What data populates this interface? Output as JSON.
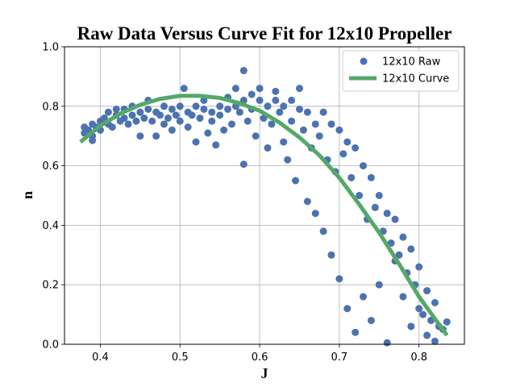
{
  "chart_data": {
    "type": "scatter",
    "title": "Raw Data Versus Curve Fit for 12x10 Propeller",
    "xlabel": "J",
    "ylabel": "n",
    "xlim": [
      0.355,
      0.857
    ],
    "ylim": [
      0,
      1.0
    ],
    "xticks": [
      0.4,
      0.5,
      0.6,
      0.7,
      0.8
    ],
    "yticks": [
      0.0,
      0.2,
      0.4,
      0.6,
      0.8,
      1.0
    ],
    "xtick_labels": [
      "0.4",
      "0.5",
      "0.6",
      "0.7",
      "0.8"
    ],
    "ytick_labels": [
      "0.0",
      "0.2",
      "0.4",
      "0.6",
      "0.8",
      "1.0"
    ],
    "grid": true,
    "legend_position": "top-right",
    "colors": {
      "raw": "#4c72b0",
      "curve": "#55a868"
    },
    "series": [
      {
        "name": "12x10 Raw",
        "kind": "scatter",
        "points": [
          [
            0.38,
            0.71
          ],
          [
            0.38,
            0.73
          ],
          [
            0.385,
            0.72
          ],
          [
            0.39,
            0.74
          ],
          [
            0.39,
            0.7
          ],
          [
            0.39,
            0.685
          ],
          [
            0.395,
            0.73
          ],
          [
            0.4,
            0.75
          ],
          [
            0.4,
            0.72
          ],
          [
            0.405,
            0.76
          ],
          [
            0.41,
            0.74
          ],
          [
            0.41,
            0.78
          ],
          [
            0.415,
            0.73
          ],
          [
            0.42,
            0.77
          ],
          [
            0.42,
            0.79
          ],
          [
            0.425,
            0.75
          ],
          [
            0.43,
            0.76
          ],
          [
            0.43,
            0.79
          ],
          [
            0.435,
            0.74
          ],
          [
            0.44,
            0.77
          ],
          [
            0.44,
            0.8
          ],
          [
            0.445,
            0.75
          ],
          [
            0.45,
            0.78
          ],
          [
            0.45,
            0.7
          ],
          [
            0.455,
            0.76
          ],
          [
            0.46,
            0.79
          ],
          [
            0.46,
            0.82
          ],
          [
            0.465,
            0.75
          ],
          [
            0.47,
            0.78
          ],
          [
            0.47,
            0.7
          ],
          [
            0.475,
            0.77
          ],
          [
            0.48,
            0.8
          ],
          [
            0.48,
            0.74
          ],
          [
            0.485,
            0.76
          ],
          [
            0.49,
            0.79
          ],
          [
            0.49,
            0.72
          ],
          [
            0.495,
            0.77
          ],
          [
            0.5,
            0.8
          ],
          [
            0.5,
            0.75
          ],
          [
            0.505,
            0.86
          ],
          [
            0.51,
            0.78
          ],
          [
            0.51,
            0.73
          ],
          [
            0.515,
            0.77
          ],
          [
            0.52,
            0.8
          ],
          [
            0.52,
            0.68
          ],
          [
            0.525,
            0.76
          ],
          [
            0.53,
            0.79
          ],
          [
            0.53,
            0.82
          ],
          [
            0.535,
            0.71
          ],
          [
            0.54,
            0.78
          ],
          [
            0.54,
            0.75
          ],
          [
            0.545,
            0.67
          ],
          [
            0.55,
            0.8
          ],
          [
            0.55,
            0.77
          ],
          [
            0.555,
            0.72
          ],
          [
            0.56,
            0.79
          ],
          [
            0.56,
            0.83
          ],
          [
            0.565,
            0.74
          ],
          [
            0.57,
            0.8
          ],
          [
            0.57,
            0.86
          ],
          [
            0.575,
            0.78
          ],
          [
            0.58,
            0.82
          ],
          [
            0.58,
            0.92
          ],
          [
            0.585,
            0.75
          ],
          [
            0.58,
            0.605
          ],
          [
            0.59,
            0.79
          ],
          [
            0.59,
            0.84
          ],
          [
            0.595,
            0.7
          ],
          [
            0.6,
            0.82
          ],
          [
            0.6,
            0.86
          ],
          [
            0.605,
            0.76
          ],
          [
            0.61,
            0.8
          ],
          [
            0.61,
            0.66
          ],
          [
            0.615,
            0.74
          ],
          [
            0.62,
            0.82
          ],
          [
            0.62,
            0.85
          ],
          [
            0.625,
            0.78
          ],
          [
            0.63,
            0.8
          ],
          [
            0.63,
            0.68
          ],
          [
            0.635,
            0.62
          ],
          [
            0.64,
            0.82
          ],
          [
            0.64,
            0.75
          ],
          [
            0.645,
            0.55
          ],
          [
            0.65,
            0.79
          ],
          [
            0.65,
            0.86
          ],
          [
            0.655,
            0.72
          ],
          [
            0.66,
            0.78
          ],
          [
            0.66,
            0.48
          ],
          [
            0.665,
            0.66
          ],
          [
            0.67,
            0.74
          ],
          [
            0.67,
            0.44
          ],
          [
            0.675,
            0.7
          ],
          [
            0.68,
            0.78
          ],
          [
            0.68,
            0.38
          ],
          [
            0.685,
            0.62
          ],
          [
            0.69,
            0.74
          ],
          [
            0.69,
            0.3
          ],
          [
            0.695,
            0.58
          ],
          [
            0.7,
            0.72
          ],
          [
            0.7,
            0.22
          ],
          [
            0.705,
            0.64
          ],
          [
            0.71,
            0.68
          ],
          [
            0.71,
            0.12
          ],
          [
            0.715,
            0.56
          ],
          [
            0.72,
            0.66
          ],
          [
            0.72,
            0.04
          ],
          [
            0.725,
            0.5
          ],
          [
            0.73,
            0.6
          ],
          [
            0.73,
            0.16
          ],
          [
            0.735,
            0.42
          ],
          [
            0.74,
            0.56
          ],
          [
            0.74,
            0.08
          ],
          [
            0.745,
            0.46
          ],
          [
            0.75,
            0.5
          ],
          [
            0.75,
            0.2
          ],
          [
            0.755,
            0.38
          ],
          [
            0.76,
            0.44
          ],
          [
            0.76,
            0.005
          ],
          [
            0.765,
            0.34
          ],
          [
            0.77,
            0.42
          ],
          [
            0.77,
            0.28
          ],
          [
            0.775,
            0.3
          ],
          [
            0.78,
            0.36
          ],
          [
            0.78,
            0.16
          ],
          [
            0.785,
            0.24
          ],
          [
            0.79,
            0.32
          ],
          [
            0.79,
            0.06
          ],
          [
            0.795,
            0.2
          ],
          [
            0.8,
            0.26
          ],
          [
            0.8,
            0.12
          ],
          [
            0.805,
            0.1
          ],
          [
            0.81,
            0.18
          ],
          [
            0.81,
            0.03
          ],
          [
            0.815,
            0.08
          ],
          [
            0.82,
            0.14
          ],
          [
            0.82,
            0.01
          ],
          [
            0.825,
            0.06
          ],
          [
            0.83,
            0.05
          ],
          [
            0.835,
            0.075
          ]
        ]
      },
      {
        "name": "12x10 Curve",
        "kind": "line",
        "x": [
          0.375,
          0.4,
          0.425,
          0.45,
          0.475,
          0.5,
          0.525,
          0.55,
          0.575,
          0.6,
          0.625,
          0.65,
          0.675,
          0.7,
          0.725,
          0.75,
          0.775,
          0.8,
          0.835
        ],
        "y": [
          0.68,
          0.735,
          0.775,
          0.805,
          0.825,
          0.835,
          0.835,
          0.828,
          0.81,
          0.785,
          0.745,
          0.695,
          0.635,
          0.56,
          0.47,
          0.375,
          0.27,
          0.16,
          0.03
        ]
      }
    ]
  }
}
